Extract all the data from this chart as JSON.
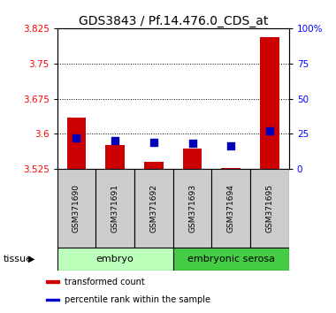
{
  "title": "GDS3843 / Pf.14.476.0_CDS_at",
  "samples": [
    "GSM371690",
    "GSM371691",
    "GSM371692",
    "GSM371693",
    "GSM371694",
    "GSM371695"
  ],
  "red_values": [
    3.635,
    3.577,
    3.54,
    3.568,
    3.527,
    3.805
  ],
  "blue_values": [
    3.592,
    3.585,
    3.582,
    3.58,
    3.574,
    3.607
  ],
  "red_base": 3.525,
  "ylim": [
    3.525,
    3.825
  ],
  "yticks_left": [
    3.525,
    3.6,
    3.675,
    3.75,
    3.825
  ],
  "yticks_right": [
    0,
    25,
    50,
    75,
    100
  ],
  "ytick_labels_right": [
    "0",
    "25",
    "50",
    "75",
    "100%"
  ],
  "groups": [
    {
      "label": "embryo",
      "start": 0,
      "end": 2,
      "color": "#bbffbb"
    },
    {
      "label": "embryonic serosa",
      "start": 3,
      "end": 5,
      "color": "#44cc44"
    }
  ],
  "tissue_label": "tissue",
  "legend_items": [
    {
      "color": "#cc0000",
      "label": "transformed count"
    },
    {
      "color": "#0000cc",
      "label": "percentile rank within the sample"
    }
  ],
  "bar_color": "#cc0000",
  "dot_color": "#0000bb",
  "background_color": "#ffffff",
  "bar_width": 0.5,
  "dot_size": 35,
  "title_fontsize": 10,
  "tick_fontsize": 7.5,
  "sample_fontsize": 6.5,
  "legend_fontsize": 7.0,
  "grid_yticks": [
    3.6,
    3.675,
    3.75
  ]
}
